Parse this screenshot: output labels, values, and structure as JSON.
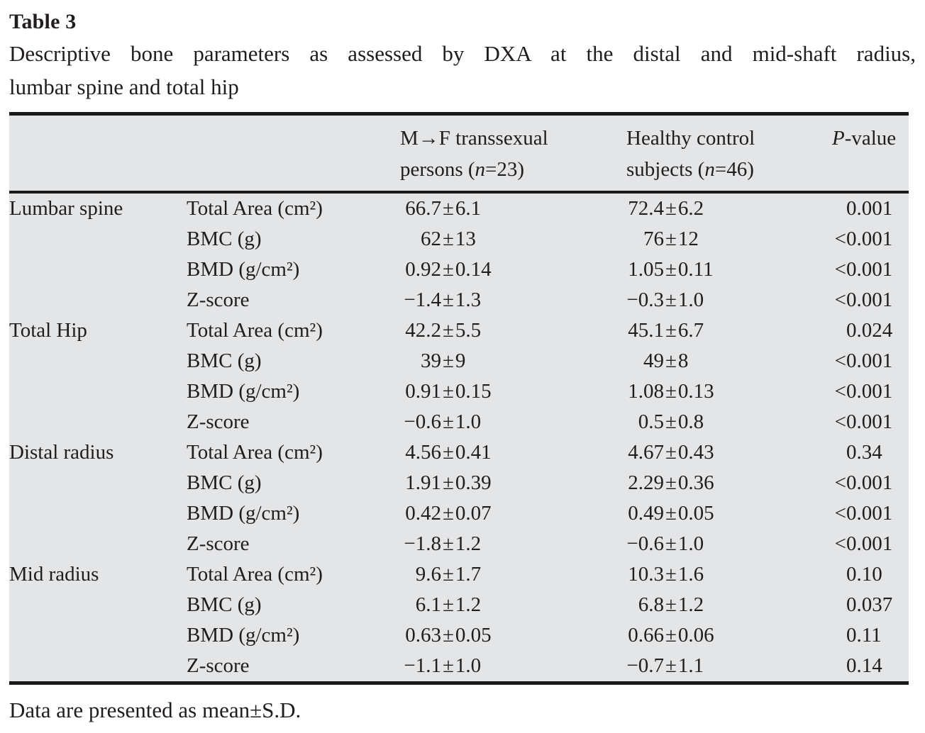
{
  "title": "Table 3",
  "caption_line1": "Descriptive bone parameters as assessed by DXA at the distal and mid-shaft radius,",
  "caption_line2": "lumbar spine and total hip",
  "footnote": "Data are presented as mean±S.D.",
  "signs": {
    "pm": "±"
  },
  "header": {
    "group1": {
      "line1": "M→F transsexual",
      "line2_pre": "persons (",
      "n": "n",
      "line2_post": "=23)"
    },
    "group2": {
      "line1": "Healthy control",
      "line2_pre": "subjects (",
      "n": "n",
      "line2_post": "=46)"
    },
    "p": {
      "italic": "P",
      "rest": "-value"
    }
  },
  "rows": [
    {
      "region": "Lumbar spine",
      "param": "Total Area (cm²)",
      "mf_mean": "66.7",
      "mf_sd": "6.1",
      "hc_mean": "72.4",
      "hc_sd": "6.2",
      "p_prefix": "",
      "p": "0.001"
    },
    {
      "region": "",
      "param": "BMC (g)",
      "mf_mean": "62",
      "mf_sd": "13",
      "hc_mean": "76",
      "hc_sd": "12",
      "p_prefix": "<",
      "p": "0.001"
    },
    {
      "region": "",
      "param": "BMD (g/cm²)",
      "mf_mean": "0.92",
      "mf_sd": "0.14",
      "hc_mean": "1.05",
      "hc_sd": "0.11",
      "p_prefix": "<",
      "p": "0.001"
    },
    {
      "region": "",
      "param": "Z-score",
      "mf_mean": "−1.4",
      "mf_sd": "1.3",
      "hc_mean": "−0.3",
      "hc_sd": "1.0",
      "p_prefix": "<",
      "p": "0.001"
    },
    {
      "region": "Total Hip",
      "param": "Total Area (cm²)",
      "mf_mean": "42.2",
      "mf_sd": "5.5",
      "hc_mean": "45.1",
      "hc_sd": "6.7",
      "p_prefix": "",
      "p": "0.024"
    },
    {
      "region": "",
      "param": "BMC (g)",
      "mf_mean": "39",
      "mf_sd": "9",
      "hc_mean": "49",
      "hc_sd": "8",
      "p_prefix": "<",
      "p": "0.001"
    },
    {
      "region": "",
      "param": "BMD (g/cm²)",
      "mf_mean": "0.91",
      "mf_sd": "0.15",
      "hc_mean": "1.08",
      "hc_sd": "0.13",
      "p_prefix": "<",
      "p": "0.001"
    },
    {
      "region": "",
      "param": "Z-score",
      "mf_mean": "−0.6",
      "mf_sd": "1.0",
      "hc_mean": "0.5",
      "hc_sd": "0.8",
      "p_prefix": "<",
      "p": "0.001"
    },
    {
      "region": "Distal radius",
      "param": "Total Area (cm²)",
      "mf_mean": "4.56",
      "mf_sd": "0.41",
      "hc_mean": "4.67",
      "hc_sd": "0.43",
      "p_prefix": "",
      "p": "0.34"
    },
    {
      "region": "",
      "param": "BMC (g)",
      "mf_mean": "1.91",
      "mf_sd": "0.39",
      "hc_mean": "2.29",
      "hc_sd": "0.36",
      "p_prefix": "<",
      "p": "0.001"
    },
    {
      "region": "",
      "param": "BMD (g/cm²)",
      "mf_mean": "0.42",
      "mf_sd": "0.07",
      "hc_mean": "0.49",
      "hc_sd": "0.05",
      "p_prefix": "<",
      "p": "0.001"
    },
    {
      "region": "",
      "param": "Z-score",
      "mf_mean": "−1.8",
      "mf_sd": "1.2",
      "hc_mean": "−0.6",
      "hc_sd": "1.0",
      "p_prefix": "<",
      "p": "0.001"
    },
    {
      "region": "Mid radius",
      "param": "Total Area (cm²)",
      "mf_mean": "9.6",
      "mf_sd": "1.7",
      "hc_mean": "10.3",
      "hc_sd": "1.6",
      "p_prefix": "",
      "p": "0.10"
    },
    {
      "region": "",
      "param": "BMC (g)",
      "mf_mean": "6.1",
      "mf_sd": "1.2",
      "hc_mean": "6.8",
      "hc_sd": "1.2",
      "p_prefix": "",
      "p": "0.037"
    },
    {
      "region": "",
      "param": "BMD (g/cm²)",
      "mf_mean": "0.63",
      "mf_sd": "0.05",
      "hc_mean": "0.66",
      "hc_sd": "0.06",
      "p_prefix": "",
      "p": "0.11"
    },
    {
      "region": "",
      "param": "Z-score",
      "mf_mean": "−1.1",
      "mf_sd": "1.0",
      "hc_mean": "−0.7",
      "hc_sd": "1.1",
      "p_prefix": "",
      "p": "0.14"
    }
  ]
}
